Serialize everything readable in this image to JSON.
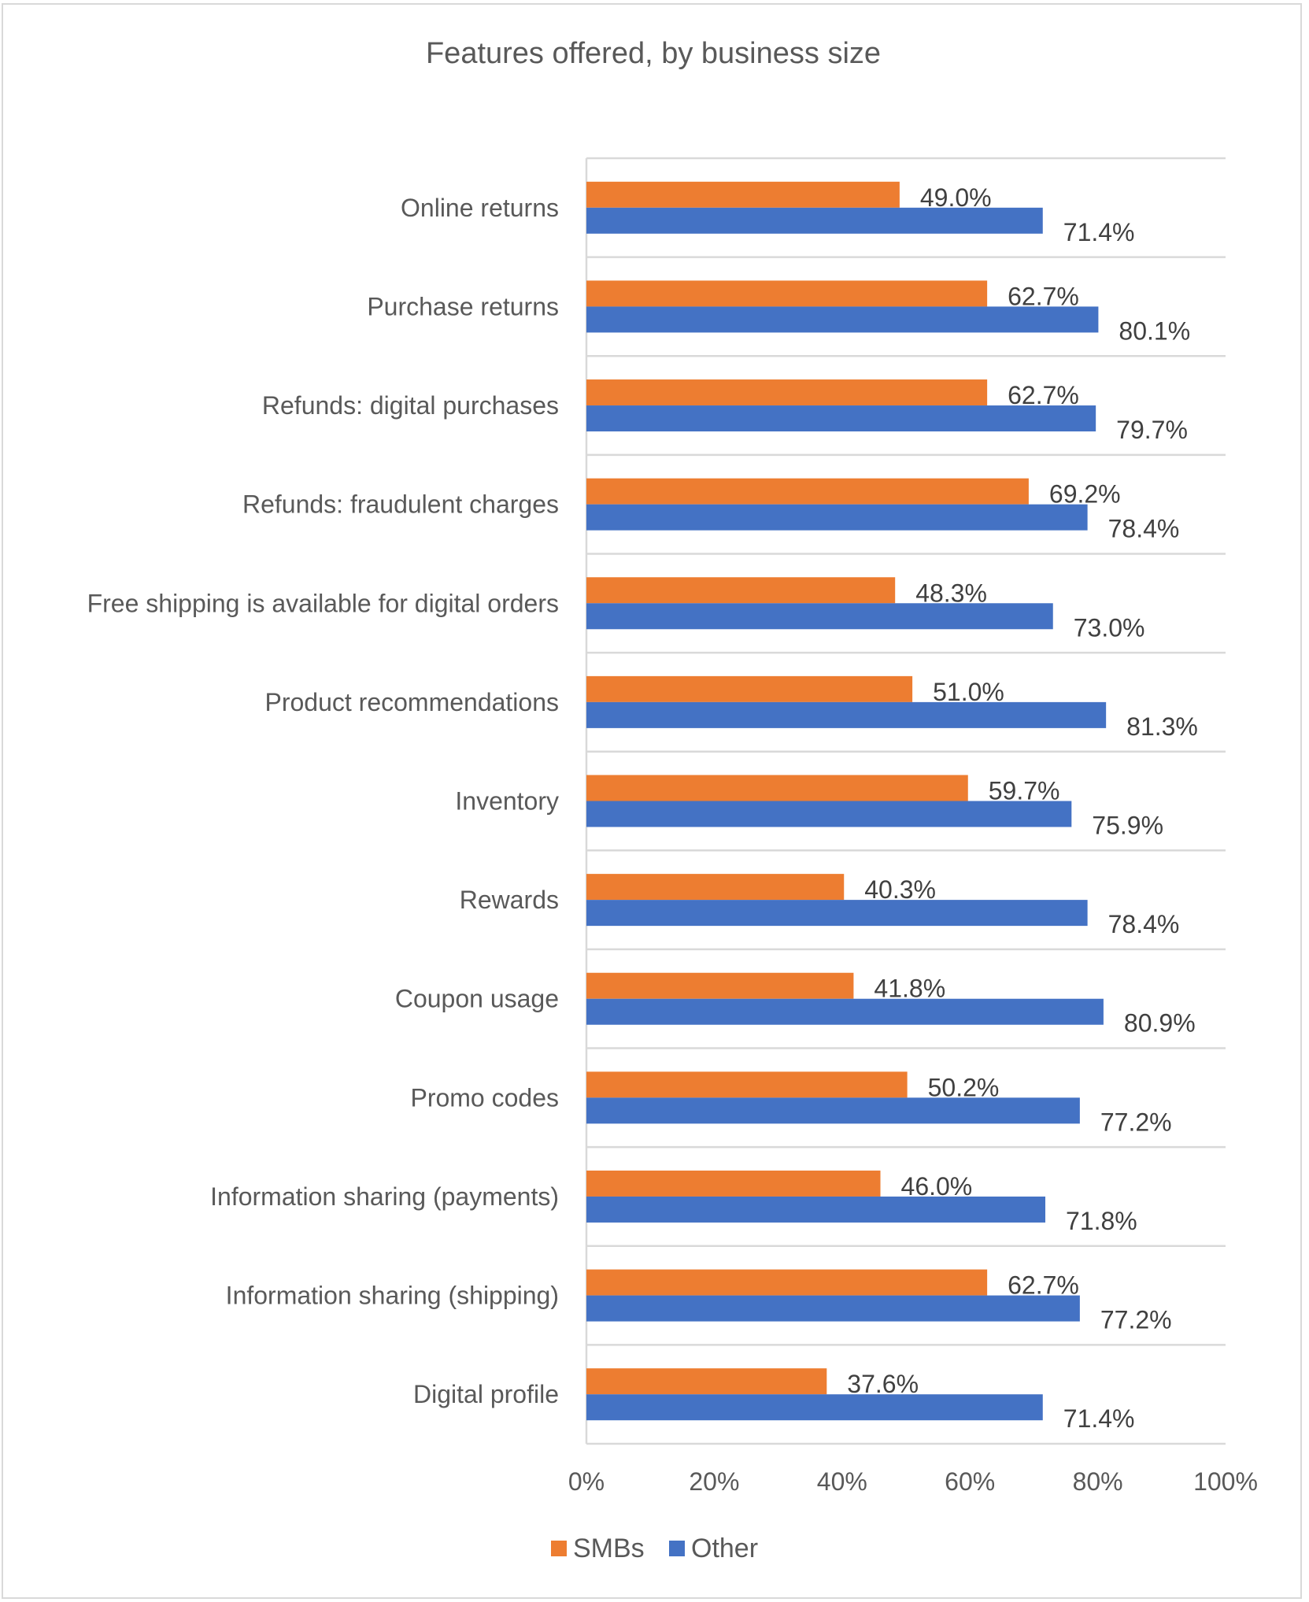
{
  "chart_data": {
    "type": "bar",
    "orientation": "horizontal",
    "title": "Features offered, by business size",
    "xlabel": "",
    "ylabel": "",
    "xlim": [
      0,
      100
    ],
    "x_ticks": [
      "0%",
      "20%",
      "40%",
      "60%",
      "80%",
      "100%"
    ],
    "x_tick_values": [
      0,
      20,
      40,
      60,
      80,
      100
    ],
    "grid": "horizontal category separators",
    "legend_position": "bottom",
    "categories": [
      "Online returns",
      "Purchase returns",
      "Refunds: digital purchases",
      "Refunds: fraudulent charges",
      "Free shipping is available for digital orders",
      "Product recommendations",
      "Inventory",
      "Rewards",
      "Coupon usage",
      "Promo codes",
      "Information sharing (payments)",
      "Information sharing (shipping)",
      "Digital profile"
    ],
    "series": [
      {
        "name": "SMBs",
        "color": "#ED7D31",
        "values": [
          49.0,
          62.7,
          62.7,
          69.2,
          48.3,
          51.0,
          59.7,
          40.3,
          41.8,
          50.2,
          46.0,
          62.7,
          37.6
        ],
        "labels": [
          "49.0%",
          "62.7%",
          "62.7%",
          "69.2%",
          "48.3%",
          "51.0%",
          "59.7%",
          "40.3%",
          "41.8%",
          "50.2%",
          "46.0%",
          "62.7%",
          "37.6%"
        ]
      },
      {
        "name": "Other",
        "color": "#4472C4",
        "values": [
          71.4,
          80.1,
          79.7,
          78.4,
          73.0,
          81.3,
          75.9,
          78.4,
          80.9,
          77.2,
          71.8,
          77.2,
          71.4
        ],
        "labels": [
          "71.4%",
          "80.1%",
          "79.7%",
          "78.4%",
          "73.0%",
          "81.3%",
          "75.9%",
          "78.4%",
          "80.9%",
          "77.2%",
          "71.8%",
          "77.2%",
          "71.4%"
        ]
      }
    ]
  }
}
